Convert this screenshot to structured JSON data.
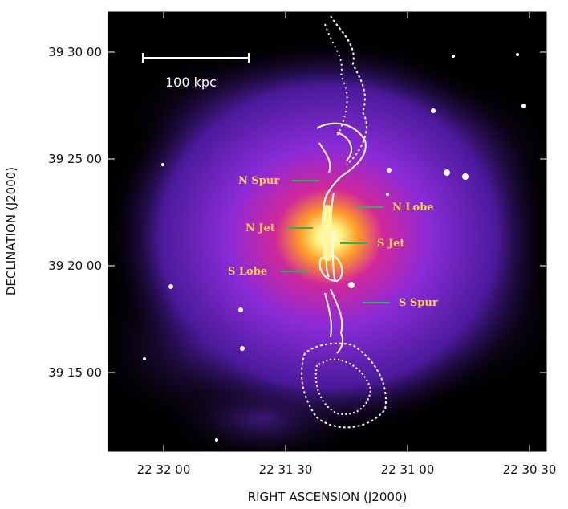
{
  "figure": {
    "scalebar_label": "100 kpc",
    "xlabel": "RIGHT ASCENSION  (J2000)",
    "ylabel": "DECLINATION  (J2000)",
    "x_ticks": [
      "22 32 00",
      "22 31 30",
      "22 31 00",
      "22 30 30"
    ],
    "y_ticks": [
      "39 30 00",
      "39 25 00",
      "39 20 00",
      "39 15 00"
    ],
    "annotations": [
      "N Spur",
      "N Lobe",
      "N Jet",
      "S Jet",
      "S Lobe",
      "S Spur"
    ],
    "colors": {
      "background": "#000000",
      "halo": "#7a2cd6",
      "core": "#ffe07a",
      "contours": "#ffffff",
      "labels": "#ffd24a",
      "pointer_lines": "#2fae5f"
    }
  }
}
